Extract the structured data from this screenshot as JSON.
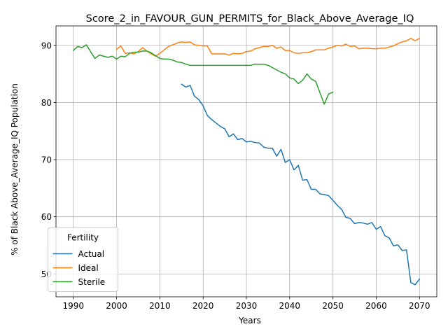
{
  "chart_data": {
    "type": "line",
    "title": "Score_2_in_FAVOUR_GUN_PERMITS_for_Black_Above_Average_IQ",
    "xlabel": "Years",
    "ylabel": "% of Black Above_Average_IQ Population",
    "xlim": [
      1986.0,
      2074.0
    ],
    "ylim": [
      46.0,
      93.4
    ],
    "xticks": [
      1990,
      2000,
      2010,
      2020,
      2030,
      2040,
      2050,
      2060,
      2070
    ],
    "yticks": [
      50,
      60,
      70,
      80,
      90
    ],
    "grid": true,
    "legend": {
      "title": "Fertility",
      "placement": "lower-left"
    },
    "series": [
      {
        "name": "Actual",
        "color": "#1f77b4",
        "x": [
          2015,
          2016,
          2017,
          2018,
          2019,
          2020,
          2021,
          2022,
          2023,
          2024,
          2025,
          2026,
          2027,
          2028,
          2029,
          2030,
          2031,
          2032,
          2033,
          2034,
          2035,
          2036,
          2037,
          2038,
          2039,
          2040,
          2041,
          2042,
          2043,
          2044,
          2045,
          2046,
          2047,
          2048,
          2049,
          2050,
          2051,
          2052,
          2053,
          2054,
          2055,
          2056,
          2057,
          2058,
          2059,
          2060,
          2061,
          2062,
          2063,
          2064,
          2065,
          2066,
          2067,
          2068,
          2069,
          2070
        ],
        "y": [
          83.2,
          82.7,
          83.0,
          81.1,
          80.5,
          79.4,
          77.7,
          77.0,
          76.4,
          75.8,
          75.4,
          74.0,
          74.5,
          73.5,
          73.7,
          73.1,
          73.2,
          73.0,
          72.9,
          72.2,
          72.0,
          72.0,
          70.6,
          71.8,
          69.5,
          70.0,
          68.2,
          69.0,
          66.4,
          66.5,
          64.8,
          64.8,
          64.0,
          63.9,
          63.7,
          62.9,
          62.0,
          61.3,
          59.9,
          59.7,
          58.8,
          59.0,
          58.9,
          58.7,
          59.0,
          57.8,
          58.3,
          56.7,
          56.3,
          54.9,
          55.1,
          54.1,
          54.2,
          48.5,
          48.1,
          49.1
        ]
      },
      {
        "name": "Ideal",
        "color": "#ff7f0e",
        "x": [
          2000,
          2001,
          2002,
          2003,
          2004,
          2005,
          2006,
          2007,
          2008,
          2009,
          2010,
          2011,
          2012,
          2013,
          2014,
          2015,
          2016,
          2017,
          2018,
          2019,
          2020,
          2021,
          2022,
          2023,
          2024,
          2025,
          2026,
          2027,
          2028,
          2029,
          2030,
          2031,
          2032,
          2033,
          2034,
          2035,
          2036,
          2037,
          2038,
          2039,
          2040,
          2041,
          2042,
          2043,
          2044,
          2045,
          2046,
          2047,
          2048,
          2049,
          2050,
          2051,
          2052,
          2053,
          2054,
          2055,
          2056,
          2057,
          2058,
          2059,
          2060,
          2061,
          2062,
          2063,
          2064,
          2065,
          2066,
          2067,
          2068,
          2069,
          2070
        ],
        "y": [
          89.3,
          89.9,
          88.6,
          88.7,
          88.5,
          88.9,
          89.6,
          89.0,
          88.5,
          88.1,
          88.6,
          89.2,
          89.8,
          90.1,
          90.4,
          90.6,
          90.5,
          90.6,
          90.1,
          90.0,
          89.9,
          89.9,
          88.5,
          88.5,
          88.5,
          88.5,
          88.3,
          88.6,
          88.5,
          88.6,
          88.9,
          89.0,
          89.4,
          89.6,
          89.8,
          89.8,
          90.0,
          89.5,
          89.7,
          89.1,
          89.1,
          88.7,
          88.6,
          88.7,
          88.7,
          88.9,
          89.2,
          89.2,
          89.2,
          89.5,
          89.7,
          90.0,
          89.9,
          90.2,
          89.8,
          89.9,
          89.4,
          89.5,
          89.5,
          89.4,
          89.4,
          89.5,
          89.5,
          89.7,
          89.9,
          90.3,
          90.6,
          90.8,
          91.2,
          90.8,
          91.2
        ]
      },
      {
        "name": "Sterile",
        "color": "#2ca02c",
        "x": [
          1990,
          1991,
          1992,
          1993,
          1994,
          1995,
          1996,
          1997,
          1998,
          1999,
          2000,
          2001,
          2002,
          2003,
          2004,
          2005,
          2006,
          2007,
          2008,
          2009,
          2010,
          2011,
          2012,
          2013,
          2014,
          2015,
          2016,
          2017,
          2018,
          2019,
          2020,
          2021,
          2022,
          2023,
          2024,
          2025,
          2026,
          2027,
          2028,
          2029,
          2030,
          2031,
          2032,
          2033,
          2034,
          2035,
          2036,
          2037,
          2038,
          2039,
          2040,
          2041,
          2042,
          2043,
          2044,
          2045,
          2046,
          2047,
          2048,
          2049,
          2050
        ],
        "y": [
          89.1,
          89.8,
          89.6,
          90.1,
          88.9,
          87.7,
          88.3,
          88.1,
          87.9,
          88.1,
          87.6,
          88.1,
          88.0,
          88.6,
          88.8,
          88.8,
          89.0,
          89.0,
          88.7,
          88.2,
          87.7,
          87.6,
          87.6,
          87.4,
          87.1,
          87.0,
          86.7,
          86.5,
          86.5,
          86.5,
          86.5,
          86.5,
          86.5,
          86.5,
          86.5,
          86.5,
          86.5,
          86.5,
          86.5,
          86.5,
          86.5,
          86.5,
          86.7,
          86.7,
          86.7,
          86.5,
          86.1,
          85.7,
          85.3,
          85.0,
          84.3,
          84.1,
          83.3,
          83.9,
          85.0,
          84.1,
          83.7,
          81.7,
          79.7,
          81.5,
          81.8
        ]
      }
    ]
  }
}
